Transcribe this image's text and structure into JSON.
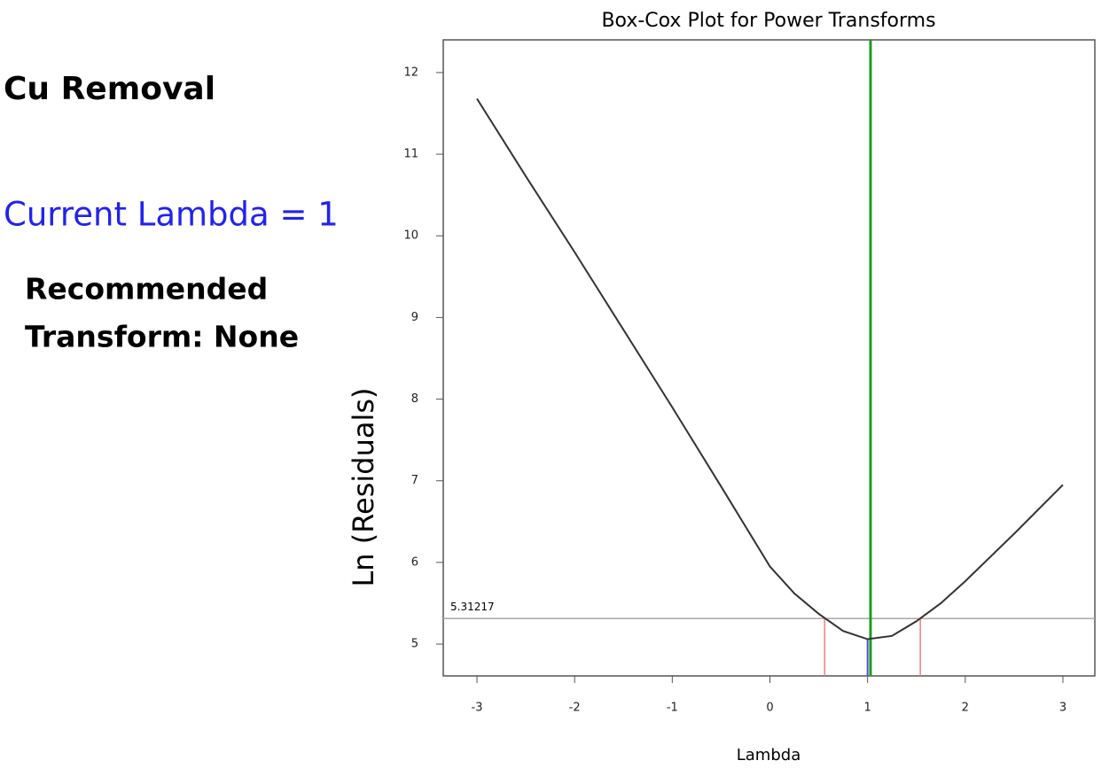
{
  "panel": {
    "response": "Cu Removal",
    "current_lambda": "Current Lambda = 1",
    "recommendation": [
      "Recommended",
      "Transform: None"
    ]
  },
  "chart_data": {
    "type": "line",
    "title": "Box-Cox Plot for Power Transforms",
    "x_label": "Lambda",
    "y_label": "Ln (Residuals)",
    "x": [
      -3,
      -2.5,
      -2,
      -1.5,
      -1,
      -0.5,
      0,
      0.25,
      0.5,
      0.75,
      1,
      1.25,
      1.5,
      1.75,
      2,
      2.5,
      3
    ],
    "values": [
      11.68,
      10.73,
      9.8,
      8.85,
      7.9,
      6.93,
      5.95,
      5.62,
      5.37,
      5.16,
      5.06,
      5.1,
      5.28,
      5.5,
      5.77,
      6.35,
      6.95
    ],
    "color": "#333333",
    "ci_threshold": 5.31217,
    "ci_threshold_color": "#a8a8a8",
    "ci_low": 0.56,
    "ci_high": 1.54,
    "ci_color": "#f08080",
    "best_lambda": 1.03,
    "best_color": "#1f9a1f",
    "current_lambda": 1,
    "current_color": "#4d4de0",
    "xlim": [
      -3.345,
      3.327
    ],
    "ylim": [
      4.61,
      12.4
    ],
    "xticks": [
      -3,
      -2,
      -1,
      0,
      1,
      2,
      3
    ],
    "yticks": [
      5,
      6,
      7,
      8,
      9,
      10,
      11,
      12
    ]
  }
}
